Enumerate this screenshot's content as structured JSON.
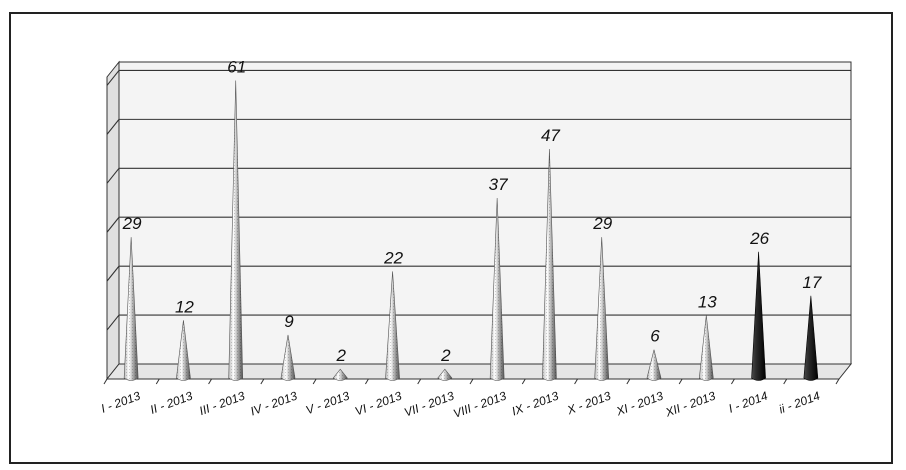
{
  "chart_data": {
    "type": "bar",
    "bar_shape": "cone",
    "categories": [
      "I - 2013",
      "II - 2013",
      "III - 2013",
      "IV - 2013",
      "V - 2013",
      "VI - 2013",
      "VII - 2013",
      "VIII - 2013",
      "IX - 2013",
      "X - 2013",
      "XI - 2013",
      "XII - 2013",
      "I - 2014",
      "ii - 2014"
    ],
    "values": [
      29,
      12,
      61,
      9,
      2,
      22,
      2,
      37,
      47,
      29,
      6,
      13,
      26,
      17
    ],
    "title": "",
    "xlabel": "",
    "ylabel": "",
    "ylim": [
      0,
      60
    ],
    "grid": true,
    "legend": "none",
    "colors": {
      "light_cone": "#d9d9d9",
      "dark_cone": "#1a1a1a",
      "dark_categories": [
        "I - 2014",
        "ii - 2014"
      ],
      "back_wall": "#f4f4f4",
      "floor": "#e6e6e6",
      "gridline": "#333333"
    }
  }
}
